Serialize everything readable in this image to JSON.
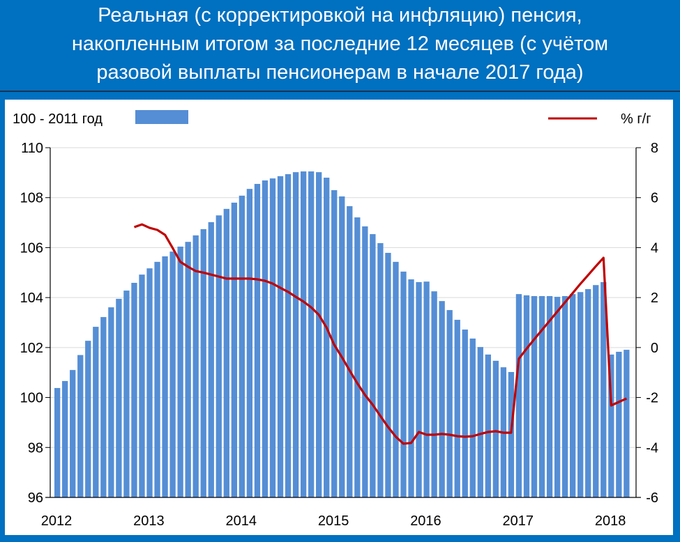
{
  "title": [
    "Реальная (с корректировкой на инфляцию) пенсия,",
    "накопленным итогом за последние 12 месяцев (с учётом",
    "разовой выплаты пенсионерам в начале 2017 года)"
  ],
  "colors": {
    "background": "#0070C0",
    "bars": "#558ED5",
    "line": "#C00000"
  },
  "chart_data": {
    "type": "bar+line",
    "title": "Реальная (с корректировкой на инфляцию) пенсия, накопленным итогом за последние 12 месяцев (с учётом разовой выплаты пенсионерам в начале 2017 года)",
    "legend": {
      "bars": "100 - 2011 год",
      "line": "% г/г",
      "placement": "top"
    },
    "x_start": "2012-01",
    "x_ticks": [
      "2012",
      "2013",
      "2014",
      "2015",
      "2016",
      "2017",
      "2018"
    ],
    "left_axis": {
      "ylim": [
        96,
        110
      ],
      "ticks": [
        "96",
        "98",
        "100",
        "102",
        "104",
        "106",
        "108",
        "110"
      ]
    },
    "right_axis": {
      "ylim": [
        -6,
        8
      ],
      "ticks": [
        "-6",
        "-4",
        "-2",
        "0",
        "2",
        "4",
        "6",
        "8"
      ]
    },
    "grid": true,
    "series": [
      {
        "name": "100 - 2011 год",
        "type": "bar",
        "axis": "left",
        "start_index": 0,
        "values": [
          100.38,
          100.66,
          101.1,
          101.7,
          102.27,
          102.83,
          103.22,
          103.61,
          103.95,
          104.28,
          104.59,
          104.92,
          105.17,
          105.43,
          105.65,
          105.84,
          106.04,
          106.23,
          106.49,
          106.74,
          107.02,
          107.29,
          107.55,
          107.8,
          108.08,
          108.35,
          108.55,
          108.69,
          108.77,
          108.86,
          108.94,
          109.02,
          109.05,
          109.05,
          109.02,
          108.8,
          108.3,
          108.05,
          107.66,
          107.21,
          106.85,
          106.54,
          106.18,
          105.79,
          105.43,
          105.04,
          104.73,
          104.62,
          104.64,
          104.25,
          103.86,
          103.5,
          103.11,
          102.72,
          102.36,
          102.02,
          101.72,
          101.47,
          101.21,
          101.02,
          104.14,
          104.09,
          104.06,
          104.06,
          104.06,
          104.03,
          104.06,
          104.14,
          104.22,
          104.34,
          104.5,
          104.62,
          101.72,
          101.83,
          101.91
        ]
      },
      {
        "name": "% г/г",
        "type": "line",
        "axis": "right",
        "start_index": 10,
        "values": [
          4.82,
          4.93,
          4.79,
          4.71,
          4.51,
          3.98,
          3.43,
          3.23,
          3.06,
          3.0,
          2.92,
          2.84,
          2.76,
          2.76,
          2.76,
          2.76,
          2.73,
          2.67,
          2.56,
          2.39,
          2.23,
          2.03,
          1.84,
          1.61,
          1.31,
          0.8,
          0.11,
          -0.39,
          -0.92,
          -1.43,
          -1.9,
          -2.29,
          -2.74,
          -3.18,
          -3.57,
          -3.85,
          -3.82,
          -3.38,
          -3.49,
          -3.49,
          -3.46,
          -3.49,
          -3.55,
          -3.57,
          -3.55,
          -3.46,
          -3.38,
          -3.35,
          -3.41,
          -3.41,
          -0.45,
          -0.05,
          0.33,
          0.7,
          1.07,
          1.44,
          1.81,
          2.18,
          2.55,
          2.9,
          3.25,
          3.59,
          -2.32,
          -2.18,
          -2.04
        ]
      }
    ]
  }
}
